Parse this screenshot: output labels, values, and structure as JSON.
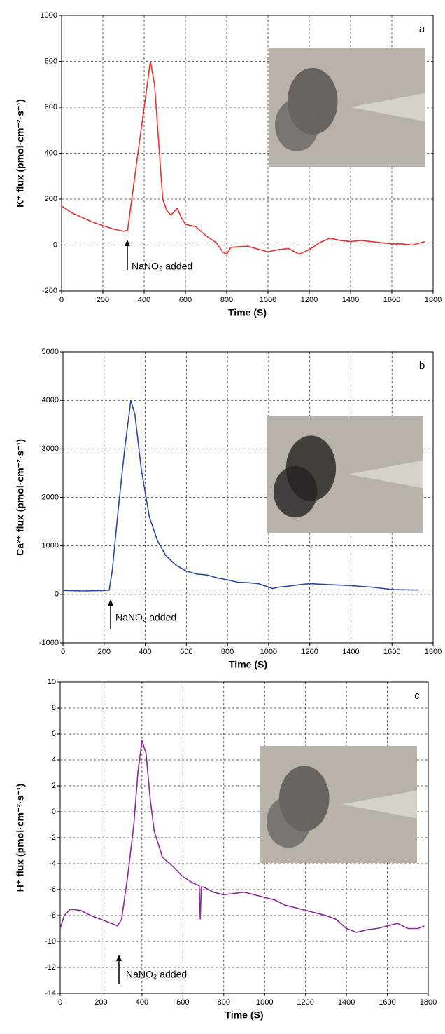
{
  "chart_data": [
    {
      "type": "line",
      "panel": "a",
      "x_label": "Time (S)",
      "y_label": "K⁺ flux (pmol·cm⁻²·s⁻¹)",
      "annotation": "NaNO₂ added",
      "xlim": [
        0,
        1800
      ],
      "ylim": [
        -200,
        1000
      ],
      "xticks": [
        0,
        200,
        400,
        600,
        800,
        1000,
        1200,
        1400,
        1600,
        1800
      ],
      "yticks": [
        -200,
        0,
        200,
        400,
        600,
        800,
        1000
      ],
      "grid": true,
      "color": "#e8322b",
      "x": [
        0,
        50,
        100,
        150,
        200,
        250,
        300,
        320,
        340,
        370,
        400,
        430,
        450,
        470,
        490,
        510,
        530,
        560,
        580,
        600,
        650,
        700,
        750,
        780,
        800,
        820,
        900,
        1000,
        1050,
        1100,
        1150,
        1200,
        1250,
        1300,
        1350,
        1400,
        1450,
        1500,
        1550,
        1600,
        1650,
        1700,
        1760
      ],
      "values": [
        170,
        140,
        120,
        100,
        85,
        70,
        60,
        65,
        200,
        400,
        600,
        800,
        700,
        450,
        200,
        150,
        130,
        160,
        120,
        90,
        80,
        40,
        10,
        -30,
        -40,
        -10,
        -5,
        -30,
        -20,
        -15,
        -40,
        -20,
        10,
        30,
        20,
        15,
        20,
        15,
        10,
        5,
        5,
        0,
        15
      ]
    },
    {
      "type": "line",
      "panel": "b",
      "x_label": "Time (S)",
      "y_label": "Ca²⁺ flux (pmol·cm⁻²·s⁻¹)",
      "annotation": "NaNO₂ added",
      "xlim": [
        0,
        1800
      ],
      "ylim": [
        -1000,
        5000
      ],
      "xticks": [
        0,
        200,
        400,
        600,
        800,
        1000,
        1200,
        1400,
        1600,
        1800
      ],
      "yticks": [
        -1000,
        0,
        1000,
        2000,
        3000,
        4000,
        5000
      ],
      "grid": true,
      "color": "#2b4aa0",
      "x": [
        0,
        100,
        200,
        225,
        240,
        270,
        300,
        330,
        350,
        380,
        420,
        460,
        500,
        550,
        600,
        650,
        700,
        750,
        800,
        850,
        900,
        950,
        1000,
        1020,
        1050,
        1100,
        1150,
        1200,
        1250,
        1300,
        1400,
        1500,
        1600,
        1700,
        1730
      ],
      "values": [
        80,
        70,
        80,
        90,
        500,
        1800,
        3000,
        4000,
        3700,
        2600,
        1600,
        1100,
        800,
        600,
        480,
        420,
        400,
        340,
        300,
        250,
        240,
        220,
        150,
        120,
        150,
        170,
        200,
        220,
        210,
        200,
        180,
        150,
        100,
        90,
        90
      ]
    },
    {
      "type": "line",
      "panel": "c",
      "x_label": "Time (S)",
      "y_label": "H⁺ flux (pmol·cm⁻²·s⁻¹)",
      "annotation": "NaNO₂ added",
      "xlim": [
        0,
        1800
      ],
      "ylim": [
        -14,
        10
      ],
      "xticks": [
        0,
        200,
        400,
        600,
        800,
        1000,
        1200,
        1400,
        1600,
        1800
      ],
      "yticks": [
        -14,
        -12,
        -10,
        -8,
        -6,
        -4,
        -2,
        0,
        2,
        4,
        6,
        8,
        10
      ],
      "grid": true,
      "color": "#8b2a9b",
      "x": [
        0,
        20,
        50,
        100,
        150,
        200,
        250,
        280,
        300,
        330,
        360,
        380,
        400,
        420,
        440,
        460,
        480,
        500,
        550,
        600,
        650,
        680,
        685,
        690,
        700,
        750,
        800,
        850,
        900,
        950,
        1000,
        1050,
        1100,
        1150,
        1200,
        1250,
        1300,
        1350,
        1400,
        1450,
        1500,
        1550,
        1600,
        1650,
        1700,
        1750,
        1780
      ],
      "values": [
        -9,
        -8,
        -7.5,
        -7.6,
        -8,
        -8.3,
        -8.6,
        -8.8,
        -8.3,
        -5,
        -1,
        3,
        5.5,
        4.5,
        1,
        -1.5,
        -2.5,
        -3.5,
        -4.2,
        -5,
        -5.5,
        -5.7,
        -8.3,
        -5.8,
        -5.8,
        -6.2,
        -6.4,
        -6.3,
        -6.2,
        -6.4,
        -6.6,
        -6.8,
        -7.2,
        -7.4,
        -7.6,
        -7.8,
        -8,
        -8.3,
        -9,
        -9.3,
        -9.1,
        -9,
        -8.8,
        -8.6,
        -9,
        -9,
        -8.8
      ]
    }
  ]
}
